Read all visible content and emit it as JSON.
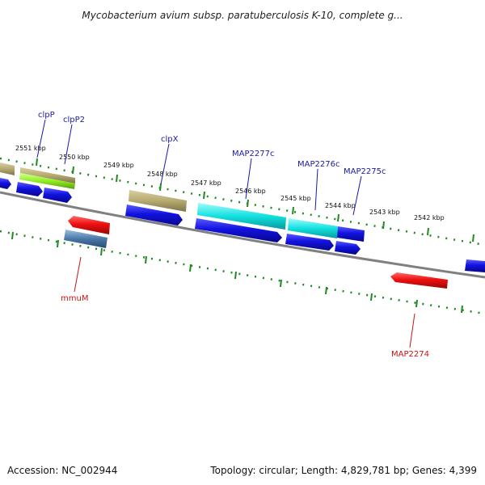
{
  "title": "Mycobacterium avium subsp. paratuberculosis K-10, complete g...",
  "footer": {
    "accession": "Accession: NC_002944",
    "summary": "Topology: circular; Length: 4,829,781 bp; Genes: 4,399"
  },
  "ruler_labels": [
    "2551 kbp",
    "2550 kbp",
    "2549 kbp",
    "2548 kbp",
    "2547 kbp",
    "2546 kbp",
    "2545 kbp",
    "2544 kbp",
    "2543 kbp",
    "2542 kbp"
  ],
  "gene_labels": {
    "clpP": "clpP",
    "clpP2": "clpP2",
    "clpX": "clpX",
    "MAP2277c": "MAP2277c",
    "MAP2276c": "MAP2276c",
    "MAP2275c": "MAP2275c",
    "mmuM": "mmuM",
    "MAP2274": "MAP2274"
  },
  "colors": {
    "cds": "#1010dd",
    "reverse_feature": "#ee1111",
    "tan_feature": "#b9ae78",
    "cyan_feature": "#11dddd",
    "green_feature": "#88ee22",
    "steel_feature": "#4a78a8",
    "ruler": "#228822",
    "backbone": "#888888"
  }
}
